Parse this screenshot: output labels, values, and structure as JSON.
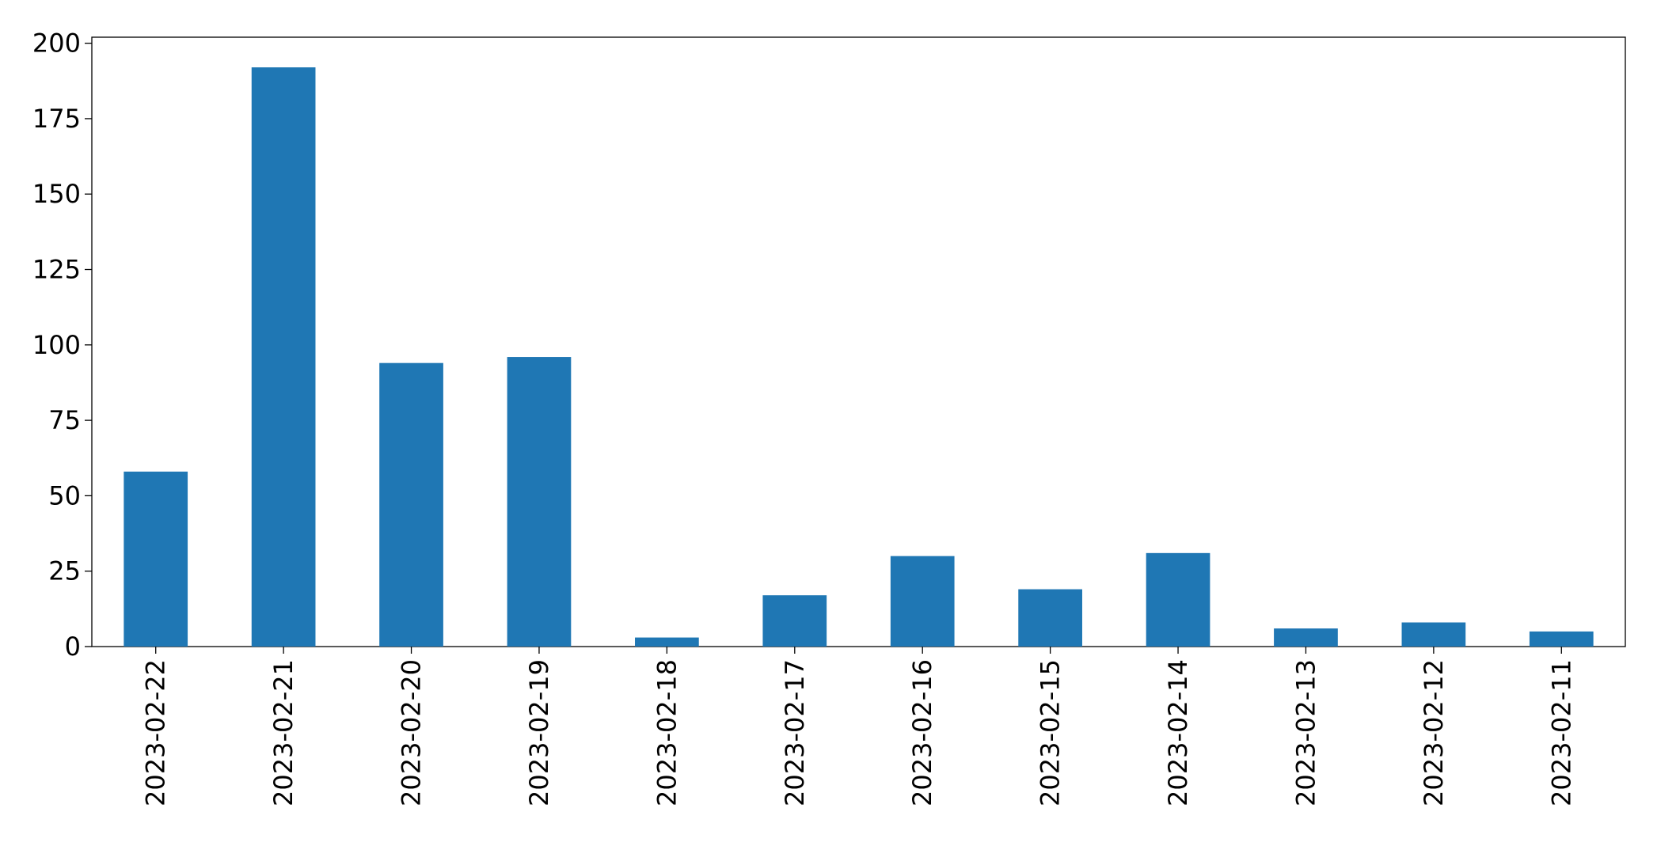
{
  "chart_data": {
    "type": "bar",
    "categories": [
      "2023-02-22",
      "2023-02-21",
      "2023-02-20",
      "2023-02-19",
      "2023-02-18",
      "2023-02-17",
      "2023-02-16",
      "2023-02-15",
      "2023-02-14",
      "2023-02-13",
      "2023-02-12",
      "2023-02-11"
    ],
    "values": [
      58,
      192,
      94,
      96,
      3,
      17,
      30,
      19,
      31,
      6,
      8,
      5
    ],
    "color": "#1f77b4",
    "ylim": [
      0,
      202
    ],
    "yticks": [
      0,
      25,
      50,
      75,
      100,
      125,
      150,
      175,
      200
    ],
    "grid": false
  }
}
